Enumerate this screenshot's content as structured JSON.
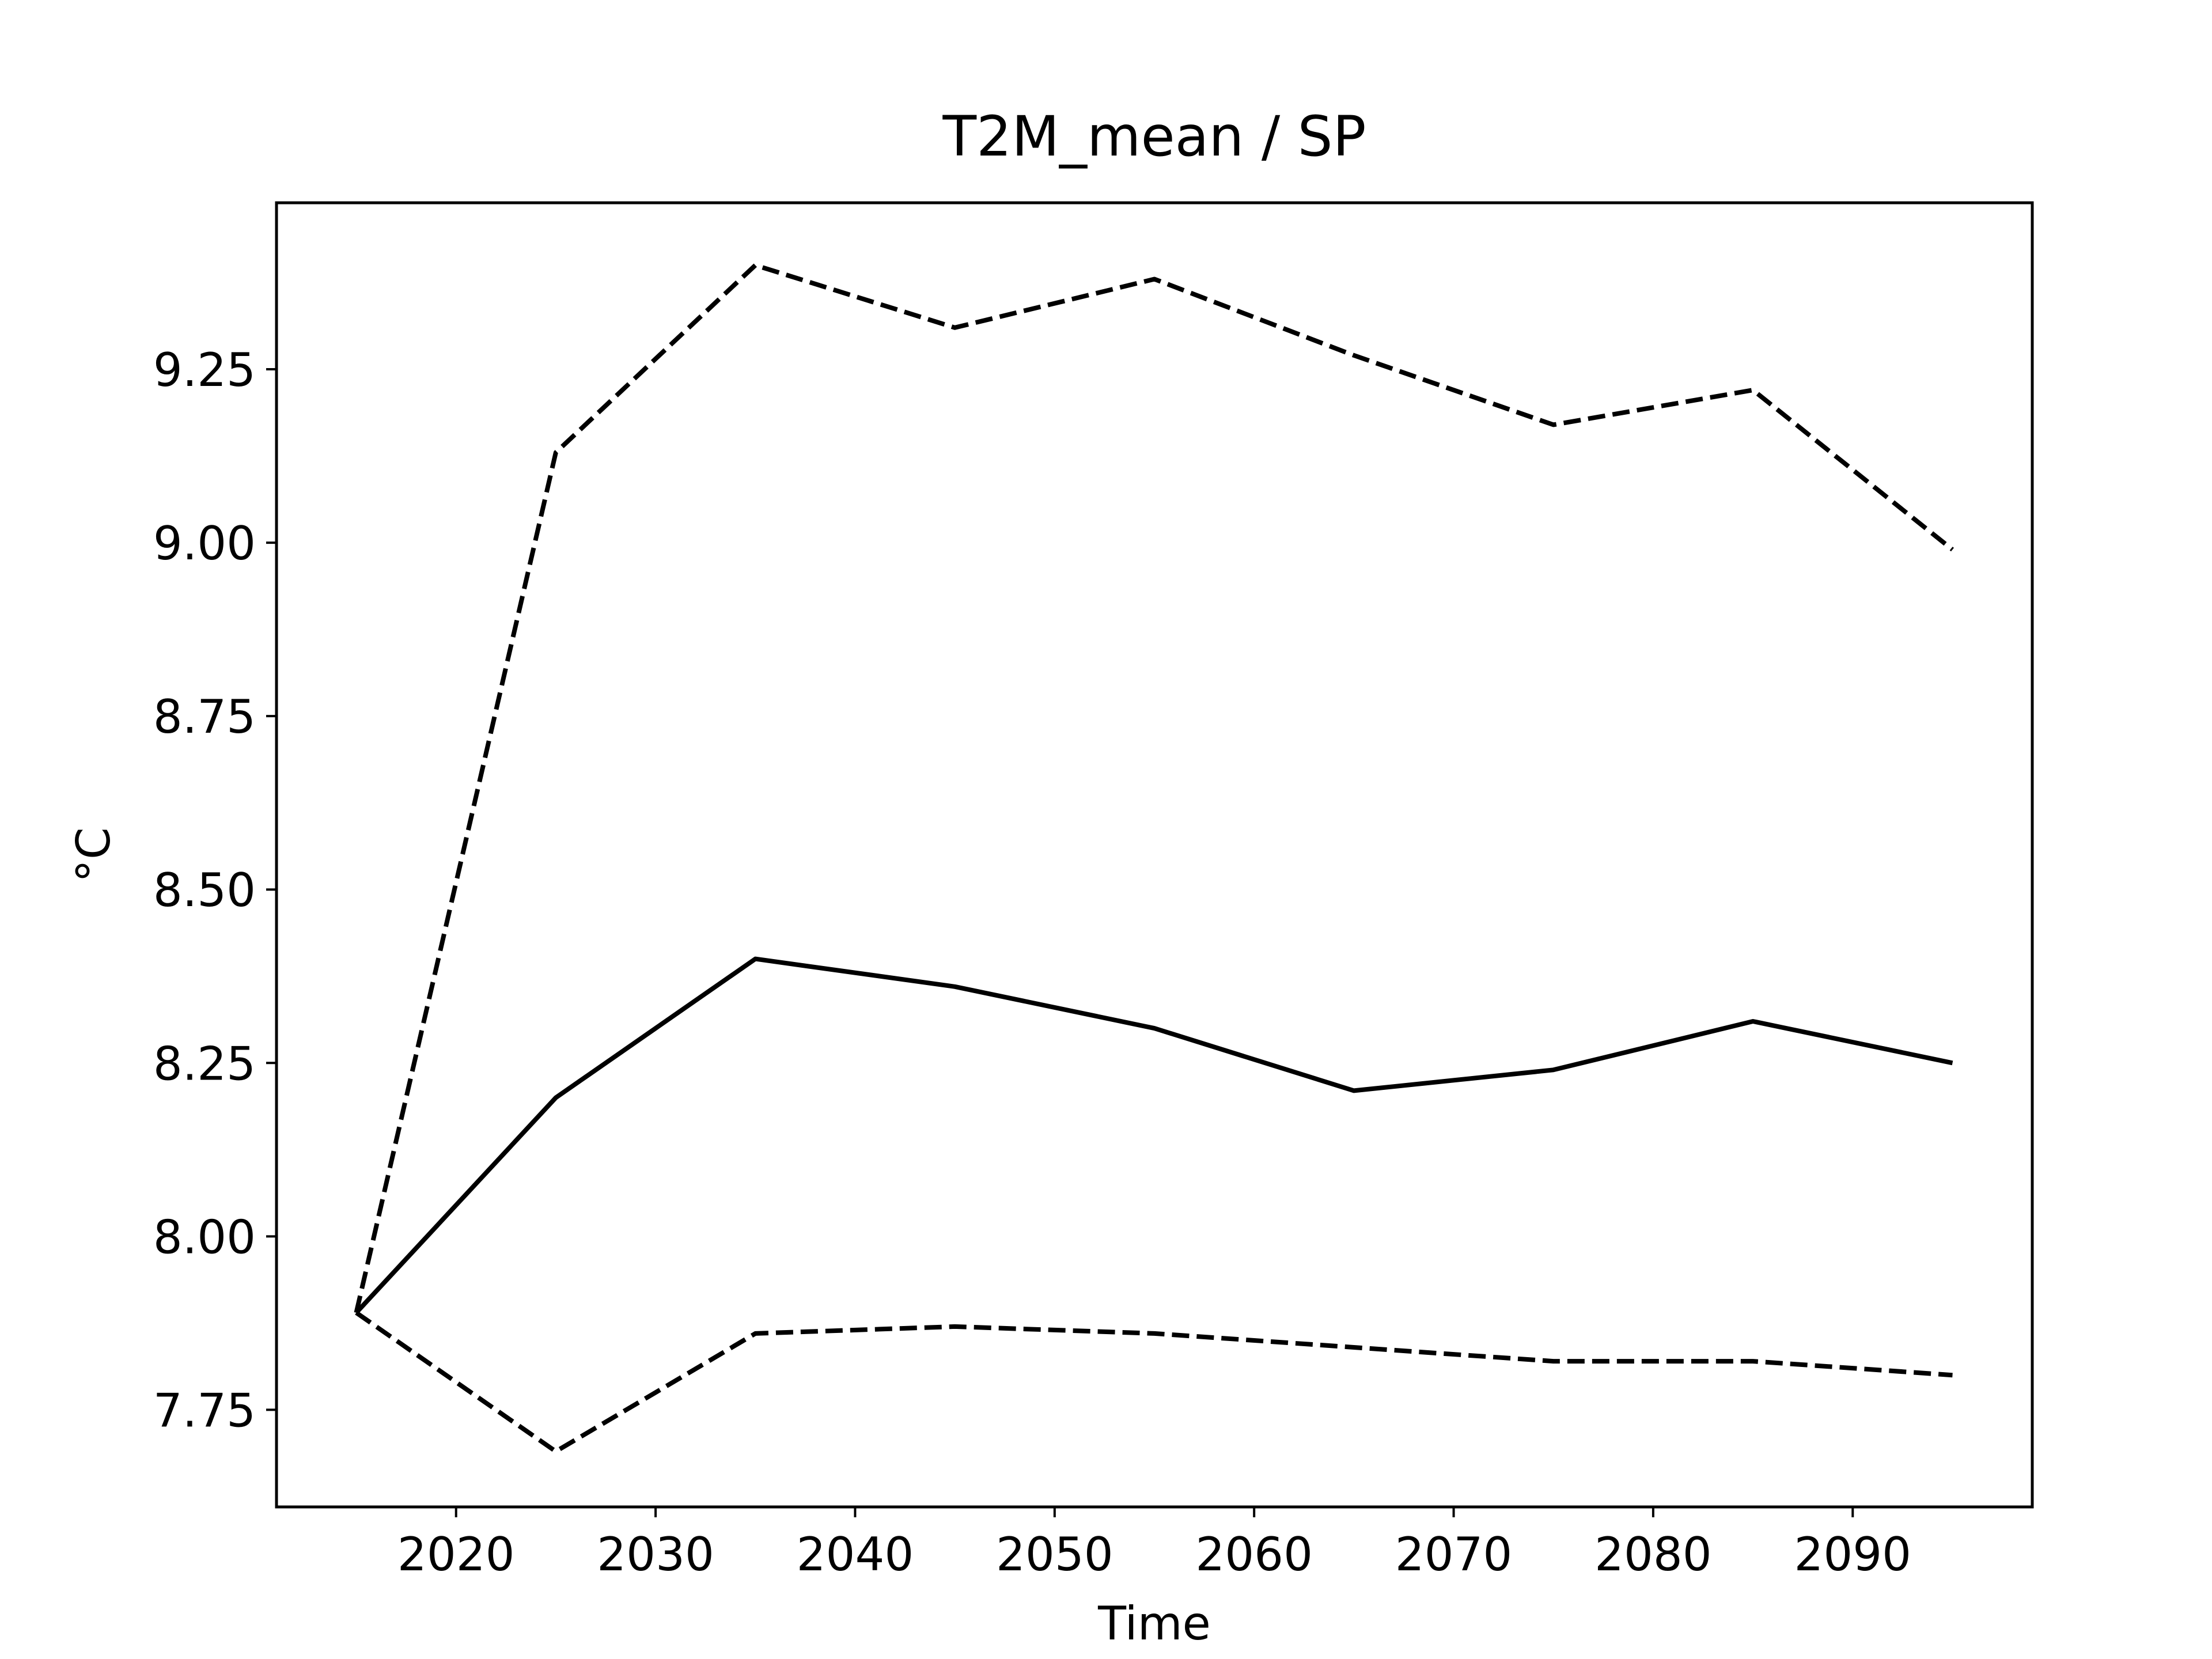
{
  "chart_data": {
    "type": "line",
    "title": "T2M_mean / SP",
    "xlabel": "Time",
    "ylabel": "°C",
    "x": [
      2015,
      2025,
      2035,
      2045,
      2055,
      2065,
      2075,
      2085,
      2095
    ],
    "series": [
      {
        "line_style": "solid",
        "color": "#000000",
        "values": [
          7.89,
          8.2,
          8.4,
          8.36,
          8.3,
          8.21,
          8.24,
          8.31,
          8.25
        ]
      },
      {
        "line_style": "dashed",
        "color": "#000000",
        "values": [
          7.89,
          9.13,
          9.4,
          9.31,
          9.38,
          9.27,
          9.17,
          9.22,
          8.99
        ]
      },
      {
        "line_style": "dashed",
        "color": "#000000",
        "values": [
          7.89,
          7.69,
          7.86,
          7.87,
          7.86,
          7.84,
          7.82,
          7.82,
          7.8
        ]
      }
    ],
    "xlim": [
      2011,
      2099
    ],
    "ylim": [
      7.61,
      9.49
    ],
    "xticks": [
      2020,
      2030,
      2040,
      2050,
      2060,
      2070,
      2080,
      2090
    ],
    "xtick_labels": [
      "2020",
      "2030",
      "2040",
      "2050",
      "2060",
      "2070",
      "2080",
      "2090"
    ],
    "yticks": [
      7.75,
      8.0,
      8.25,
      8.5,
      8.75,
      9.0,
      9.25
    ],
    "ytick_labels": [
      "7.75",
      "8.00",
      "8.25",
      "8.50",
      "8.75",
      "9.00",
      "9.25"
    ],
    "grid": false,
    "legend": false
  }
}
